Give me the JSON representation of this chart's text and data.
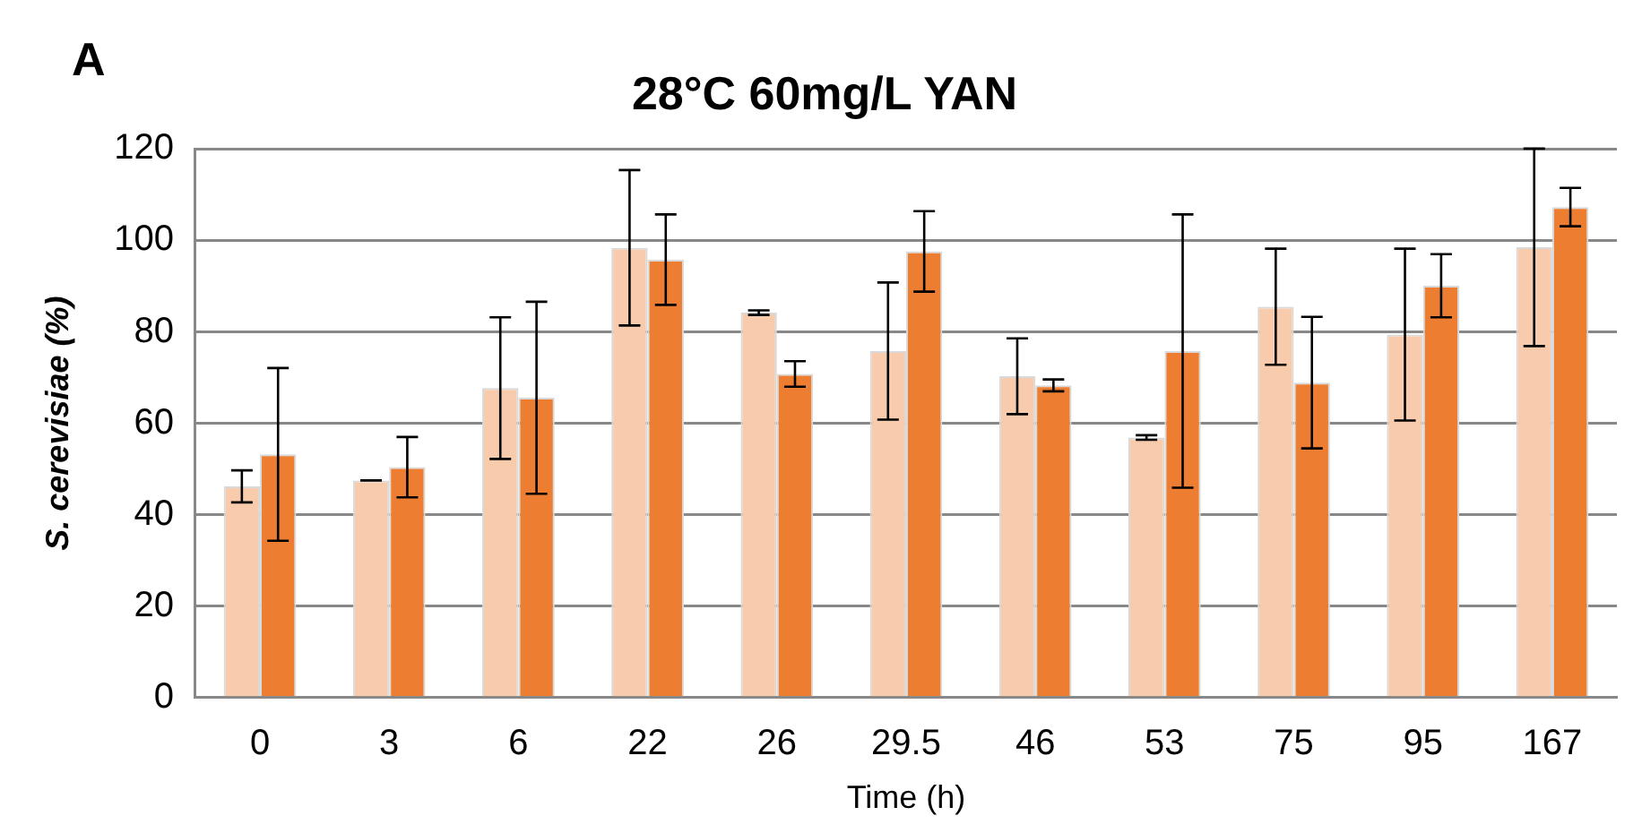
{
  "chart_data": {
    "type": "bar",
    "title": "28°C 60mg/L YAN",
    "xlabel": "Time (h)",
    "ylabel": "S. cerevisiae (%)",
    "annotations": [
      "A"
    ],
    "categories": [
      "0",
      "3",
      "6",
      "22",
      "26",
      "29.5",
      "46",
      "53",
      "75",
      "95",
      "167"
    ],
    "series": [
      {
        "color": "#f8cbad",
        "values": [
          46.2,
          47.5,
          67.7,
          98.4,
          84.2,
          75.8,
          70.3,
          56.9,
          85.5,
          79.4,
          98.5
        ],
        "errors": [
          3.5,
          0,
          15.5,
          17,
          0.5,
          15,
          8.3,
          0.5,
          12.7,
          18.8,
          21.6
        ]
      },
      {
        "color": "#ed7d31",
        "values": [
          53.2,
          50.4,
          65.6,
          95.8,
          70.8,
          97.6,
          68.3,
          75.8,
          68.9,
          90.1,
          107.3
        ],
        "errors": [
          18.9,
          6.6,
          21,
          9.9,
          2.8,
          8.8,
          1.3,
          29.9,
          14.4,
          6.9,
          4.2
        ]
      }
    ],
    "ylim": [
      0,
      120
    ],
    "yticks": [
      0,
      20,
      40,
      60,
      80,
      100,
      120
    ],
    "grid": "y",
    "legend": false
  }
}
